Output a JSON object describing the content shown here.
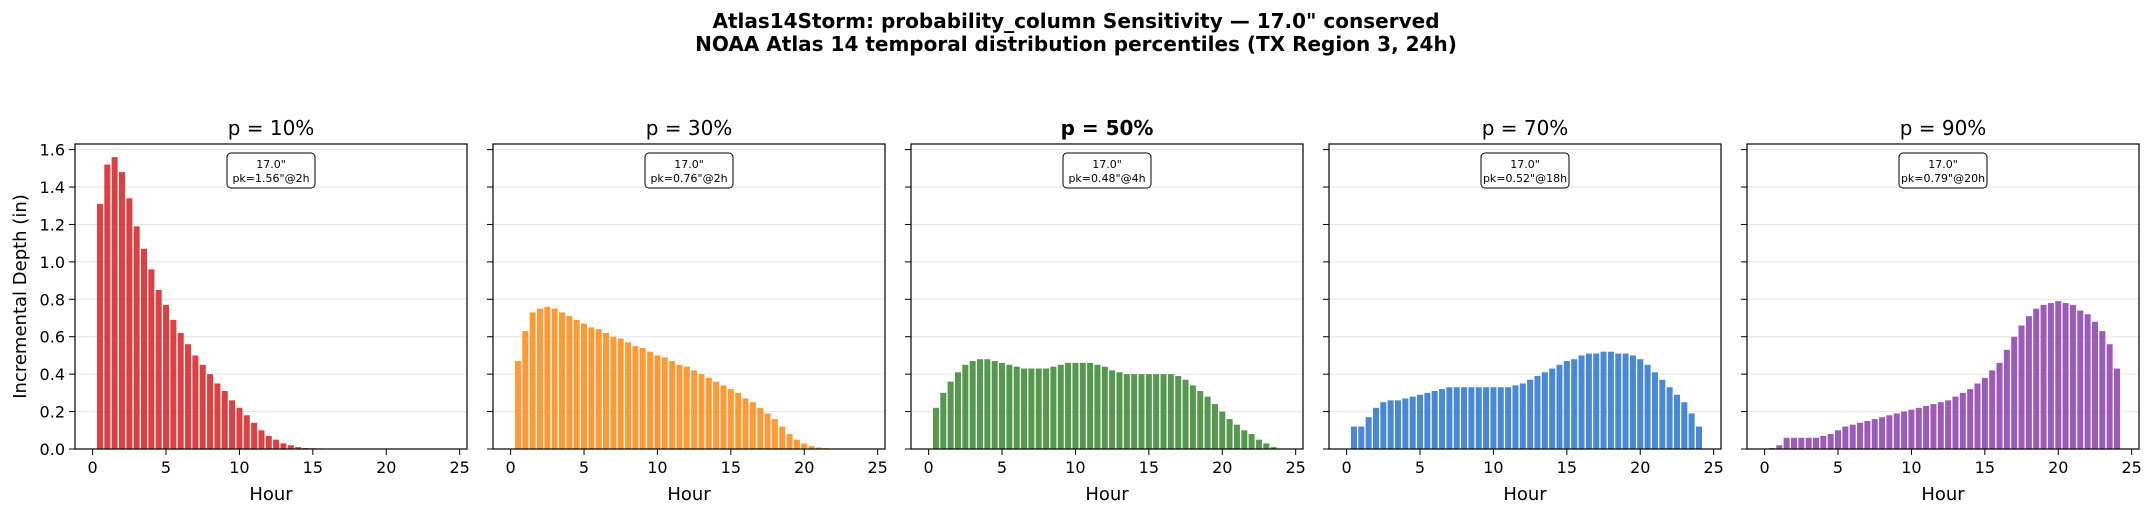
{
  "suptitle": {
    "line1": "Atlas14Storm: probability_column Sensitivity — 17.0\" conserved",
    "line2": "NOAA Atlas 14 temporal distribution percentiles (TX Region 3, 24h)"
  },
  "chart_data": [
    {
      "type": "bar",
      "title": "p = 10%",
      "title_bold": false,
      "color": "#d62728",
      "xlabel": "Hour",
      "ylabel": "Incremental Depth (in)",
      "xlim": [
        -1.2,
        25.5
      ],
      "ylim": [
        0,
        1.63
      ],
      "xticks": [
        0,
        5,
        10,
        15,
        20,
        25
      ],
      "yticks": [
        0.0,
        0.2,
        0.4,
        0.6,
        0.8,
        1.0,
        1.2,
        1.4,
        1.6
      ],
      "grid": "y",
      "annotation": {
        "line1": "17.0\"",
        "line2": "pk=1.56\"@2h"
      },
      "x": [
        0.5,
        1,
        1.5,
        2,
        2.5,
        3,
        3.5,
        4,
        4.5,
        5,
        5.5,
        6,
        6.5,
        7,
        7.5,
        8,
        8.5,
        9,
        9.5,
        10,
        10.5,
        11,
        11.5,
        12,
        12.5,
        13,
        13.5,
        14,
        14.5,
        15,
        15.5,
        16,
        16.5,
        17,
        17.5,
        18,
        18.5,
        19,
        19.5,
        20,
        20.5,
        21,
        21.5,
        22,
        22.5,
        23,
        23.5,
        24
      ],
      "values": [
        1.31,
        1.52,
        1.56,
        1.48,
        1.34,
        1.19,
        1.07,
        0.96,
        0.85,
        0.77,
        0.69,
        0.62,
        0.56,
        0.5,
        0.45,
        0.4,
        0.35,
        0.31,
        0.26,
        0.22,
        0.18,
        0.14,
        0.1,
        0.07,
        0.05,
        0.03,
        0.02,
        0.01,
        0.005,
        0.004,
        0.003,
        0.002,
        0.002,
        0.002,
        0.002,
        0.002,
        0.002,
        0.002,
        0.002,
        0.002,
        0.002,
        0.002,
        0.002,
        0.002,
        0.002,
        0.002,
        0.002,
        0.002
      ]
    },
    {
      "type": "bar",
      "title": "p = 30%",
      "title_bold": false,
      "color": "#ff8c1a",
      "xlabel": "Hour",
      "xlim": [
        -1.2,
        25.5
      ],
      "ylim": [
        0,
        1.63
      ],
      "xticks": [
        0,
        5,
        10,
        15,
        20,
        25
      ],
      "yticks": [
        0.0,
        0.2,
        0.4,
        0.6,
        0.8,
        1.0,
        1.2,
        1.4,
        1.6
      ],
      "grid": "y",
      "annotation": {
        "line1": "17.0\"",
        "line2": "pk=0.76\"@2h"
      },
      "x": [
        0.5,
        1,
        1.5,
        2,
        2.5,
        3,
        3.5,
        4,
        4.5,
        5,
        5.5,
        6,
        6.5,
        7,
        7.5,
        8,
        8.5,
        9,
        9.5,
        10,
        10.5,
        11,
        11.5,
        12,
        12.5,
        13,
        13.5,
        14,
        14.5,
        15,
        15.5,
        16,
        16.5,
        17,
        17.5,
        18,
        18.5,
        19,
        19.5,
        20,
        20.5,
        21,
        21.5,
        22,
        22.5,
        23,
        23.5,
        24
      ],
      "values": [
        0.47,
        0.63,
        0.73,
        0.75,
        0.76,
        0.75,
        0.73,
        0.71,
        0.69,
        0.67,
        0.65,
        0.64,
        0.62,
        0.6,
        0.59,
        0.57,
        0.55,
        0.54,
        0.52,
        0.5,
        0.49,
        0.47,
        0.45,
        0.44,
        0.42,
        0.4,
        0.38,
        0.36,
        0.34,
        0.32,
        0.3,
        0.27,
        0.25,
        0.22,
        0.19,
        0.16,
        0.12,
        0.08,
        0.05,
        0.03,
        0.015,
        0.008,
        0.005,
        0.003,
        0.003,
        0.003,
        0.003,
        0.003
      ]
    },
    {
      "type": "bar",
      "title": "p = 50%",
      "title_bold": true,
      "color": "#3d8b37",
      "xlabel": "Hour",
      "xlim": [
        -1.2,
        25.5
      ],
      "ylim": [
        0,
        1.63
      ],
      "xticks": [
        0,
        5,
        10,
        15,
        20,
        25
      ],
      "yticks": [
        0.0,
        0.2,
        0.4,
        0.6,
        0.8,
        1.0,
        1.2,
        1.4,
        1.6
      ],
      "grid": "y",
      "annotation": {
        "line1": "17.0\"",
        "line2": "pk=0.48\"@4h"
      },
      "x": [
        0.5,
        1,
        1.5,
        2,
        2.5,
        3,
        3.5,
        4,
        4.5,
        5,
        5.5,
        6,
        6.5,
        7,
        7.5,
        8,
        8.5,
        9,
        9.5,
        10,
        10.5,
        11,
        11.5,
        12,
        12.5,
        13,
        13.5,
        14,
        14.5,
        15,
        15.5,
        16,
        16.5,
        17,
        17.5,
        18,
        18.5,
        19,
        19.5,
        20,
        20.5,
        21,
        21.5,
        22,
        22.5,
        23,
        23.5,
        24
      ],
      "values": [
        0.22,
        0.3,
        0.36,
        0.41,
        0.45,
        0.47,
        0.48,
        0.48,
        0.47,
        0.46,
        0.45,
        0.44,
        0.43,
        0.43,
        0.43,
        0.43,
        0.44,
        0.45,
        0.46,
        0.46,
        0.46,
        0.46,
        0.45,
        0.44,
        0.42,
        0.41,
        0.4,
        0.4,
        0.4,
        0.4,
        0.4,
        0.4,
        0.4,
        0.39,
        0.37,
        0.34,
        0.31,
        0.28,
        0.24,
        0.2,
        0.16,
        0.13,
        0.1,
        0.08,
        0.05,
        0.03,
        0.01,
        0.003
      ]
    },
    {
      "type": "bar",
      "title": "p = 70%",
      "title_bold": false,
      "color": "#2f78cf",
      "xlabel": "Hour",
      "xlim": [
        -1.2,
        25.5
      ],
      "ylim": [
        0,
        1.63
      ],
      "xticks": [
        0,
        5,
        10,
        15,
        20,
        25
      ],
      "yticks": [
        0.0,
        0.2,
        0.4,
        0.6,
        0.8,
        1.0,
        1.2,
        1.4,
        1.6
      ],
      "grid": "y",
      "annotation": {
        "line1": "17.0\"",
        "line2": "pk=0.52\"@18h"
      },
      "x": [
        0.5,
        1,
        1.5,
        2,
        2.5,
        3,
        3.5,
        4,
        4.5,
        5,
        5.5,
        6,
        6.5,
        7,
        7.5,
        8,
        8.5,
        9,
        9.5,
        10,
        10.5,
        11,
        11.5,
        12,
        12.5,
        13,
        13.5,
        14,
        14.5,
        15,
        15.5,
        16,
        16.5,
        17,
        17.5,
        18,
        18.5,
        19,
        19.5,
        20,
        20.5,
        21,
        21.5,
        22,
        22.5,
        23,
        23.5,
        24
      ],
      "values": [
        0.12,
        0.12,
        0.17,
        0.22,
        0.25,
        0.26,
        0.26,
        0.27,
        0.28,
        0.29,
        0.3,
        0.31,
        0.32,
        0.33,
        0.33,
        0.33,
        0.33,
        0.33,
        0.33,
        0.33,
        0.33,
        0.33,
        0.34,
        0.35,
        0.37,
        0.39,
        0.41,
        0.43,
        0.45,
        0.47,
        0.48,
        0.5,
        0.51,
        0.51,
        0.52,
        0.52,
        0.51,
        0.51,
        0.5,
        0.48,
        0.45,
        0.41,
        0.37,
        0.33,
        0.29,
        0.25,
        0.19,
        0.12
      ]
    },
    {
      "type": "bar",
      "title": "p = 90%",
      "title_bold": false,
      "color": "#8e44ad",
      "xlabel": "Hour",
      "xlim": [
        -1.2,
        25.5
      ],
      "ylim": [
        0,
        1.63
      ],
      "xticks": [
        0,
        5,
        10,
        15,
        20,
        25
      ],
      "yticks": [
        0.0,
        0.2,
        0.4,
        0.6,
        0.8,
        1.0,
        1.2,
        1.4,
        1.6
      ],
      "grid": "y",
      "annotation": {
        "line1": "17.0\"",
        "line2": "pk=0.79\"@20h"
      },
      "x": [
        0.5,
        1,
        1.5,
        2,
        2.5,
        3,
        3.5,
        4,
        4.5,
        5,
        5.5,
        6,
        6.5,
        7,
        7.5,
        8,
        8.5,
        9,
        9.5,
        10,
        10.5,
        11,
        11.5,
        12,
        12.5,
        13,
        13.5,
        14,
        14.5,
        15,
        15.5,
        16,
        16.5,
        17,
        17.5,
        18,
        18.5,
        19,
        19.5,
        20,
        20.5,
        21,
        21.5,
        22,
        22.5,
        23,
        23.5,
        24
      ],
      "values": [
        0.005,
        0.02,
        0.06,
        0.06,
        0.06,
        0.06,
        0.06,
        0.07,
        0.08,
        0.1,
        0.12,
        0.13,
        0.14,
        0.15,
        0.16,
        0.17,
        0.18,
        0.19,
        0.2,
        0.21,
        0.22,
        0.23,
        0.24,
        0.25,
        0.26,
        0.28,
        0.3,
        0.32,
        0.35,
        0.38,
        0.42,
        0.46,
        0.53,
        0.6,
        0.66,
        0.71,
        0.75,
        0.77,
        0.78,
        0.79,
        0.78,
        0.77,
        0.74,
        0.72,
        0.68,
        0.63,
        0.56,
        0.43
      ]
    }
  ]
}
